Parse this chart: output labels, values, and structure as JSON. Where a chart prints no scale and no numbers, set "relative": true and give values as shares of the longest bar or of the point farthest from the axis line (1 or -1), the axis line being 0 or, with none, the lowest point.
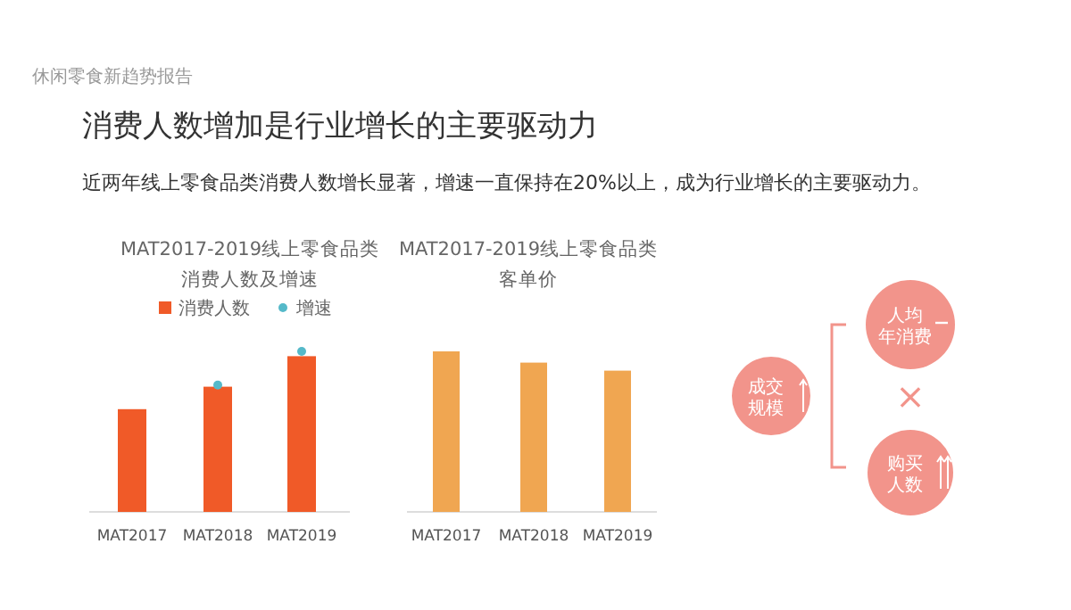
{
  "chart_data": [
    {
      "type": "other",
      "title": "消费人数增加是行业增长的主要驱动力",
      "subtitle": "近两年线上零食品类消费人数增长显著，增速一直保持在20%以上，成为行业增长的主要驱动力。",
      "annotations": [
        "休闲零食新趋势报告"
      ]
    },
    {
      "type": "bar",
      "title": "MAT2017-2019线上零食品类",
      "subtitle": "消费人数及增速",
      "relative": true,
      "legend": "top",
      "categories": [
        "MAT2017",
        "MAT2018",
        "MAT2019"
      ],
      "series": [
        {
          "name": "消费人数",
          "color": "#f05a28",
          "values": [
            0.64,
            0.78,
            0.97
          ]
        },
        {
          "name": "增速",
          "type": "scatter",
          "color": "#55b9c9",
          "values": [
            null,
            0.79,
            1
          ]
        }
      ]
    },
    {
      "type": "bar",
      "title": "MAT2017-2019线上零食品类",
      "subtitle": "客单价",
      "relative": true,
      "categories": [
        "MAT2017",
        "MAT2018",
        "MAT2019"
      ],
      "series": [
        {
          "color": "#f0a651",
          "values": [
            1,
            0.93,
            0.88
          ]
        }
      ]
    },
    {
      "type": "other",
      "annotations": [
        "成交规模",
        "人均年消费",
        "×",
        "购买人数"
      ]
    }
  ]
}
